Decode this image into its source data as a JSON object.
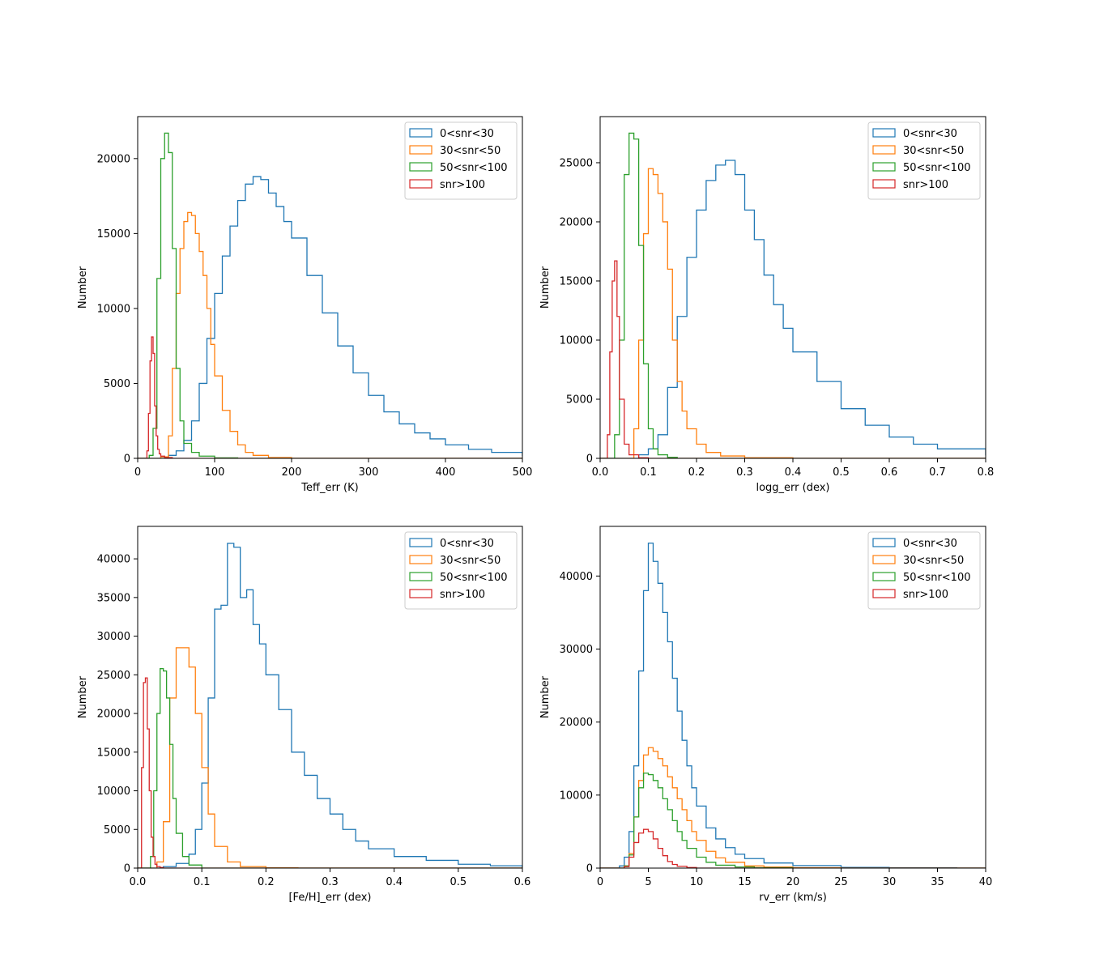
{
  "colors": {
    "series": [
      "#1f77b4",
      "#ff7f0e",
      "#2ca02c",
      "#d62728"
    ]
  },
  "chart_data": [
    {
      "type": "histogram",
      "xlabel": "Teff_err (K)",
      "ylabel": "Number",
      "xlim": [
        0,
        500
      ],
      "ylim": [
        0,
        22800
      ],
      "xticks": [
        0,
        100,
        200,
        300,
        400,
        500
      ],
      "xtick_labels": [
        "0",
        "100",
        "200",
        "300",
        "400",
        "500"
      ],
      "yticks": [
        0,
        5000,
        10000,
        15000,
        20000
      ],
      "ytick_labels": [
        "0",
        "5000",
        "10000",
        "15000",
        "20000"
      ],
      "legend_position": "upper right",
      "series": [
        {
          "name": "0<snr<30",
          "x": [
            0,
            10,
            20,
            30,
            40,
            50,
            60,
            70,
            80,
            90,
            100,
            110,
            120,
            130,
            140,
            150,
            160,
            170,
            180,
            190,
            200,
            220,
            240,
            260,
            280,
            300,
            320,
            340,
            360,
            380,
            400,
            430,
            460,
            500
          ],
          "y": [
            0,
            0,
            0,
            100,
            200,
            500,
            1200,
            2500,
            5000,
            8000,
            11000,
            13500,
            15500,
            17200,
            18300,
            18800,
            18600,
            17700,
            16800,
            15800,
            14700,
            12200,
            9700,
            7500,
            5700,
            4200,
            3100,
            2300,
            1700,
            1300,
            900,
            600,
            400,
            200
          ]
        },
        {
          "name": "30<snr<50",
          "x": [
            0,
            10,
            20,
            30,
            40,
            45,
            50,
            55,
            60,
            65,
            70,
            75,
            80,
            85,
            90,
            95,
            100,
            110,
            120,
            130,
            140,
            150,
            170,
            200,
            250,
            300
          ],
          "y": [
            0,
            0,
            0,
            100,
            1500,
            6000,
            11000,
            14000,
            15800,
            16400,
            16200,
            15000,
            13800,
            12200,
            10000,
            7600,
            5500,
            3200,
            1800,
            900,
            400,
            200,
            50,
            0,
            0,
            0
          ]
        },
        {
          "name": "50<snr<100",
          "x": [
            0,
            10,
            15,
            20,
            25,
            30,
            35,
            40,
            45,
            50,
            55,
            60,
            70,
            80,
            100,
            130
          ],
          "y": [
            0,
            0,
            200,
            2000,
            12000,
            20000,
            21700,
            20400,
            14000,
            6000,
            2500,
            1000,
            400,
            150,
            30,
            0
          ]
        },
        {
          "name": "snr>100",
          "x": [
            0,
            8,
            12,
            14,
            16,
            18,
            20,
            22,
            24,
            26,
            28,
            30,
            35,
            45,
            60
          ],
          "y": [
            0,
            0,
            500,
            3000,
            6500,
            8100,
            7000,
            3500,
            1500,
            600,
            300,
            150,
            50,
            0,
            0
          ]
        }
      ]
    },
    {
      "type": "histogram",
      "xlabel": "logg_err (dex)",
      "ylabel": "Number",
      "xlim": [
        0,
        0.8
      ],
      "ylim": [
        0,
        28900
      ],
      "xticks": [
        0,
        0.1,
        0.2,
        0.3,
        0.4,
        0.5,
        0.6,
        0.7,
        0.8
      ],
      "xtick_labels": [
        "0.0",
        "0.1",
        "0.2",
        "0.3",
        "0.4",
        "0.5",
        "0.6",
        "0.7",
        "0.8"
      ],
      "yticks": [
        0,
        5000,
        10000,
        15000,
        20000,
        25000
      ],
      "ytick_labels": [
        "0",
        "5000",
        "10000",
        "15000",
        "20000",
        "25000"
      ],
      "legend_position": "upper right",
      "series": [
        {
          "name": "0<snr<30",
          "x": [
            0,
            0.05,
            0.08,
            0.1,
            0.12,
            0.14,
            0.16,
            0.18,
            0.2,
            0.22,
            0.24,
            0.26,
            0.28,
            0.3,
            0.32,
            0.34,
            0.36,
            0.38,
            0.4,
            0.45,
            0.5,
            0.55,
            0.6,
            0.65,
            0.7,
            0.8
          ],
          "y": [
            0,
            0,
            300,
            800,
            2000,
            6000,
            12000,
            17000,
            21000,
            23500,
            24800,
            25200,
            24000,
            21000,
            18500,
            15500,
            13000,
            11000,
            9000,
            6500,
            4200,
            2800,
            1800,
            1200,
            800,
            300
          ]
        },
        {
          "name": "30<snr<50",
          "x": [
            0,
            0.06,
            0.07,
            0.08,
            0.09,
            0.1,
            0.11,
            0.12,
            0.13,
            0.14,
            0.15,
            0.16,
            0.17,
            0.18,
            0.2,
            0.22,
            0.25,
            0.3,
            0.4
          ],
          "y": [
            0,
            0,
            2500,
            10000,
            19000,
            24500,
            24000,
            22400,
            20000,
            16000,
            10000,
            6500,
            4000,
            2500,
            1200,
            500,
            200,
            50,
            0
          ]
        },
        {
          "name": "50<snr<100",
          "x": [
            0,
            0.02,
            0.03,
            0.04,
            0.05,
            0.06,
            0.07,
            0.08,
            0.09,
            0.1,
            0.11,
            0.12,
            0.14,
            0.16
          ],
          "y": [
            0,
            0,
            2000,
            10000,
            24000,
            27500,
            27000,
            18000,
            8000,
            2500,
            800,
            300,
            80,
            0
          ]
        },
        {
          "name": "snr>100",
          "x": [
            0,
            0.005,
            0.01,
            0.015,
            0.02,
            0.025,
            0.03,
            0.035,
            0.04,
            0.05,
            0.06,
            0.08,
            0.1
          ],
          "y": [
            0,
            0,
            0,
            2000,
            9000,
            15000,
            16700,
            12000,
            5000,
            1200,
            300,
            50,
            0
          ]
        }
      ]
    },
    {
      "type": "histogram",
      "xlabel": "[Fe/H]_err (dex)",
      "ylabel": "Number",
      "xlim": [
        0,
        0.6
      ],
      "ylim": [
        0,
        44200
      ],
      "xticks": [
        0,
        0.1,
        0.2,
        0.3,
        0.4,
        0.5,
        0.6
      ],
      "xtick_labels": [
        "0.0",
        "0.1",
        "0.2",
        "0.3",
        "0.4",
        "0.5",
        "0.6"
      ],
      "yticks": [
        0,
        5000,
        10000,
        15000,
        20000,
        25000,
        30000,
        35000,
        40000
      ],
      "ytick_labels": [
        "0",
        "5000",
        "10000",
        "15000",
        "20000",
        "25000",
        "30000",
        "35000",
        "40000"
      ],
      "legend_position": "upper right",
      "series": [
        {
          "name": "0<snr<30",
          "x": [
            0,
            0.02,
            0.04,
            0.06,
            0.08,
            0.09,
            0.1,
            0.11,
            0.12,
            0.13,
            0.14,
            0.15,
            0.16,
            0.17,
            0.18,
            0.19,
            0.2,
            0.22,
            0.24,
            0.26,
            0.28,
            0.3,
            0.32,
            0.34,
            0.36,
            0.4,
            0.45,
            0.5,
            0.55,
            0.6
          ],
          "y": [
            0,
            0,
            200,
            600,
            1800,
            5000,
            11000,
            22000,
            33500,
            34000,
            42000,
            41500,
            35000,
            36000,
            31500,
            29000,
            25000,
            20500,
            15000,
            12000,
            9000,
            7000,
            5000,
            3500,
            2500,
            1500,
            1000,
            500,
            300,
            100
          ]
        },
        {
          "name": "30<snr<50",
          "x": [
            0,
            0.02,
            0.03,
            0.04,
            0.05,
            0.06,
            0.07,
            0.08,
            0.09,
            0.1,
            0.11,
            0.12,
            0.14,
            0.16,
            0.2,
            0.25
          ],
          "y": [
            0,
            0,
            800,
            6000,
            22000,
            28500,
            28500,
            26000,
            20000,
            13000,
            7000,
            2800,
            800,
            200,
            30,
            0
          ]
        },
        {
          "name": "50<snr<100",
          "x": [
            0,
            0.01,
            0.02,
            0.025,
            0.03,
            0.035,
            0.04,
            0.045,
            0.05,
            0.055,
            0.06,
            0.07,
            0.08,
            0.1
          ],
          "y": [
            0,
            0,
            1500,
            10000,
            20000,
            25800,
            25500,
            22000,
            16000,
            9000,
            4500,
            1500,
            400,
            0
          ]
        },
        {
          "name": "snr>100",
          "x": [
            0,
            0.003,
            0.006,
            0.009,
            0.012,
            0.015,
            0.018,
            0.021,
            0.024,
            0.027,
            0.03,
            0.035,
            0.04,
            0.05
          ],
          "y": [
            0,
            0,
            13000,
            24000,
            24600,
            18000,
            10000,
            4000,
            1500,
            500,
            200,
            80,
            0,
            0
          ]
        }
      ]
    },
    {
      "type": "histogram",
      "xlabel": "rv_err (km/s)",
      "ylabel": "Number",
      "xlim": [
        0,
        40
      ],
      "ylim": [
        0,
        46800
      ],
      "xticks": [
        0,
        5,
        10,
        15,
        20,
        25,
        30,
        35,
        40
      ],
      "xtick_labels": [
        "0",
        "5",
        "10",
        "15",
        "20",
        "25",
        "30",
        "35",
        "40"
      ],
      "yticks": [
        0,
        10000,
        20000,
        30000,
        40000
      ],
      "ytick_labels": [
        "0",
        "10000",
        "20000",
        "30000",
        "40000"
      ],
      "legend_position": "upper right",
      "series": [
        {
          "name": "0<snr<30",
          "x": [
            0,
            1,
            2,
            2.5,
            3,
            3.5,
            4,
            4.5,
            5,
            5.5,
            6,
            6.5,
            7,
            7.5,
            8,
            8.5,
            9,
            9.5,
            10,
            11,
            12,
            13,
            14,
            15,
            17,
            20,
            25,
            30,
            37
          ],
          "y": [
            0,
            0,
            300,
            1500,
            5000,
            14000,
            27000,
            38000,
            44500,
            42000,
            39000,
            35000,
            31000,
            26000,
            21500,
            17500,
            14000,
            11000,
            8500,
            5500,
            4000,
            2800,
            1900,
            1300,
            700,
            350,
            100,
            40,
            0
          ]
        },
        {
          "name": "30<snr<50",
          "x": [
            0,
            2,
            2.5,
            3,
            3.5,
            4,
            4.5,
            5,
            5.5,
            6,
            6.5,
            7,
            7.5,
            8,
            8.5,
            9,
            9.5,
            10,
            11,
            12,
            13,
            15,
            17,
            20,
            25,
            30
          ],
          "y": [
            0,
            0,
            300,
            2000,
            7000,
            12000,
            15500,
            16500,
            16000,
            15000,
            14000,
            12500,
            11000,
            9500,
            8000,
            6500,
            5000,
            3800,
            2300,
            1400,
            800,
            300,
            150,
            50,
            0,
            0
          ]
        },
        {
          "name": "50<snr<100",
          "x": [
            0,
            2,
            2.5,
            3,
            3.5,
            4,
            4.5,
            5,
            5.5,
            6,
            6.5,
            7,
            7.5,
            8,
            8.5,
            9,
            10,
            11,
            12,
            14,
            16,
            20
          ],
          "y": [
            0,
            0,
            300,
            1800,
            7000,
            11000,
            13000,
            12800,
            12000,
            11000,
            9500,
            8000,
            6500,
            5000,
            3800,
            2700,
            1500,
            800,
            400,
            150,
            50,
            0
          ]
        },
        {
          "name": "snr>100",
          "x": [
            0,
            2,
            2.5,
            3,
            3.5,
            4,
            4.5,
            5,
            5.5,
            6,
            6.5,
            7,
            7.5,
            8,
            9,
            10,
            12
          ],
          "y": [
            0,
            0,
            200,
            1500,
            3500,
            4800,
            5300,
            5000,
            4000,
            2700,
            1700,
            900,
            500,
            250,
            80,
            0,
            0
          ]
        }
      ]
    }
  ]
}
